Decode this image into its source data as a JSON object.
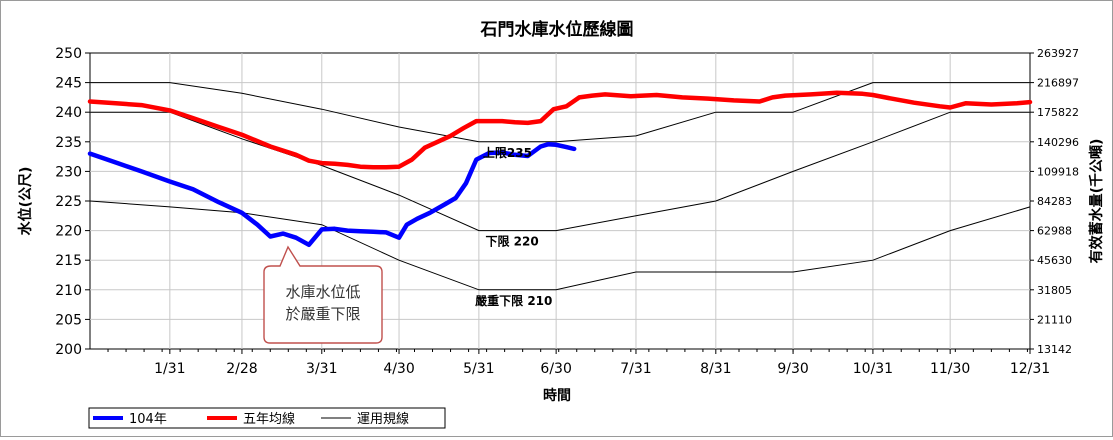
{
  "chart_data": {
    "type": "line",
    "title": "石門水庫水位歷線圖",
    "xlabel": "時間",
    "ylabel": "水位(公尺)",
    "y2label": "有效蓄水量(千公噸)",
    "ylim": [
      200,
      250
    ],
    "yticks": [
      200,
      205,
      210,
      215,
      220,
      225,
      230,
      235,
      240,
      245,
      250
    ],
    "y2ticks": [
      "13142",
      "21110",
      "31805",
      "45630",
      "62988",
      "84283",
      "109918",
      "140296",
      "175822",
      "216897",
      "263927"
    ],
    "xlim": [
      0,
      365
    ],
    "xticks": [
      {
        "label": "1/31",
        "day": 31
      },
      {
        "label": "2/28",
        "day": 59
      },
      {
        "label": "3/31",
        "day": 90
      },
      {
        "label": "4/30",
        "day": 120
      },
      {
        "label": "5/31",
        "day": 151
      },
      {
        "label": "6/30",
        "day": 181
      },
      {
        "label": "7/31",
        "day": 212
      },
      {
        "label": "8/31",
        "day": 243
      },
      {
        "label": "9/30",
        "day": 273
      },
      {
        "label": "10/31",
        "day": 304
      },
      {
        "label": "11/30",
        "day": 334
      },
      {
        "label": "12/31",
        "day": 365
      }
    ],
    "grid": true,
    "legend": "bottom-left",
    "series": [
      {
        "name": "104年",
        "color": "#0000ff",
        "x": [
          0,
          10,
          20,
          31,
          40,
          50,
          59,
          65,
          70,
          75,
          80,
          85,
          90,
          95,
          100,
          105,
          110,
          115,
          120,
          123,
          127,
          132,
          138,
          142,
          146,
          150,
          155,
          160,
          165,
          170,
          175,
          178,
          181,
          185,
          188
        ],
        "y": [
          233,
          231.5,
          230,
          228.3,
          227,
          224.8,
          223,
          221,
          219,
          219.5,
          218.8,
          217.6,
          220.2,
          220.3,
          220,
          219.9,
          219.8,
          219.7,
          218.8,
          221,
          222,
          223,
          224.5,
          225.5,
          228,
          232,
          233.1,
          233.2,
          232.8,
          232.6,
          234.2,
          234.6,
          234.5,
          234.1,
          233.8
        ]
      },
      {
        "name": "五年均線",
        "color": "#ff0000",
        "x": [
          0,
          10,
          20,
          31,
          40,
          50,
          59,
          70,
          80,
          85,
          90,
          95,
          100,
          105,
          110,
          115,
          120,
          125,
          130,
          140,
          145,
          150,
          155,
          160,
          165,
          170,
          175,
          180,
          185,
          190,
          195,
          200,
          210,
          220,
          230,
          240,
          250,
          260,
          265,
          270,
          280,
          290,
          300,
          304,
          310,
          320,
          330,
          334,
          340,
          350,
          360,
          365
        ],
        "y": [
          241.8,
          241.5,
          241.2,
          240.3,
          239,
          237.5,
          236.2,
          234.2,
          232.8,
          231.8,
          231.4,
          231.3,
          231.1,
          230.8,
          230.7,
          230.7,
          230.8,
          232,
          234,
          236,
          237.3,
          238.5,
          238.5,
          238.5,
          238.3,
          238.2,
          238.5,
          240.5,
          241,
          242.5,
          242.8,
          243,
          242.7,
          242.9,
          242.5,
          242.3,
          242,
          241.8,
          242.5,
          242.8,
          243,
          243.3,
          243.1,
          242.9,
          242.4,
          241.6,
          241,
          240.8,
          241.5,
          241.3,
          241.5,
          241.7
        ]
      },
      {
        "name": "運用規線",
        "color": "#000000",
        "x": [
          0,
          31,
          59,
          90,
          120,
          151,
          181,
          212,
          243,
          273,
          304,
          334,
          365
        ],
        "y": [
          245,
          245,
          243.2,
          240.5,
          237.5,
          235,
          235,
          236,
          240,
          240,
          245,
          245,
          245
        ]
      }
    ],
    "rule_curves": [
      {
        "x": [
          0,
          31,
          59,
          90,
          120,
          151,
          181,
          212,
          243,
          273,
          304,
          334,
          365
        ],
        "y": [
          240,
          240,
          235.5,
          231,
          226,
          220,
          220,
          222.5,
          225,
          230,
          235,
          240,
          240
        ]
      },
      {
        "x": [
          0,
          31,
          59,
          90,
          120,
          151,
          181,
          212,
          243,
          273,
          304,
          334,
          365
        ],
        "y": [
          225,
          224,
          223,
          221,
          215,
          210,
          210,
          213,
          213,
          213,
          215,
          220,
          224
        ]
      }
    ],
    "annotations": [
      {
        "text": "上限235",
        "day": 151,
        "level": 235
      },
      {
        "text": "下限 220",
        "day": 152,
        "level": 220
      },
      {
        "text": "嚴重下限 210",
        "day": 148,
        "level": 210
      }
    ],
    "callout": {
      "lines": [
        "水庫水位低",
        "於嚴重下限"
      ],
      "border_color": "#c0504d",
      "fill": "#ffffff"
    }
  }
}
